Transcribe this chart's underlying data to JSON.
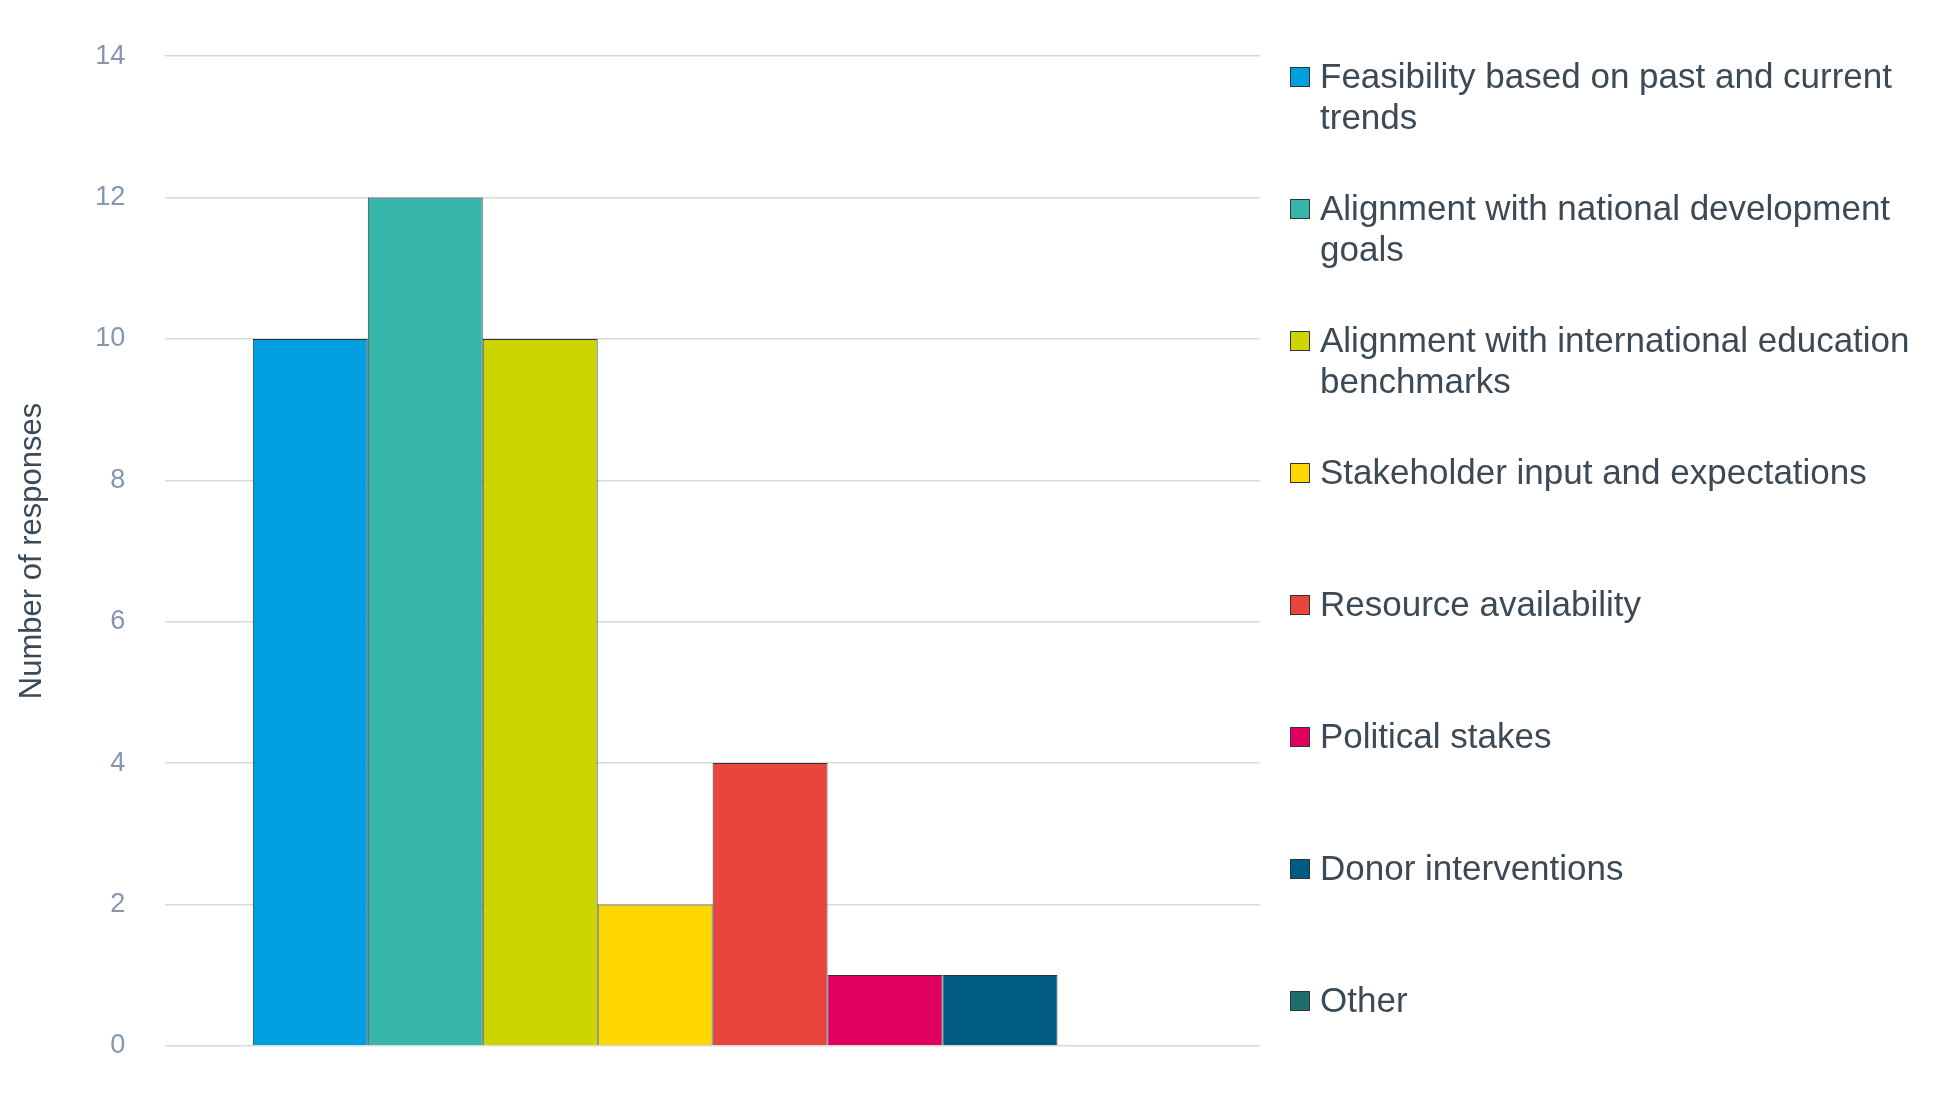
{
  "chart_data": {
    "type": "bar",
    "ylabel": "Number of responses",
    "categories": [
      null
    ],
    "series": [
      {
        "name": "Feasibility based on past and current trends",
        "color": "#009fdf",
        "values": [
          10
        ]
      },
      {
        "name": "Alignment with national development goals",
        "color": "#36b5aa",
        "values": [
          12
        ]
      },
      {
        "name": "Alignment with international education benchmarks",
        "color": "#cdd500",
        "values": [
          10
        ]
      },
      {
        "name": "Stakeholder input and expectations",
        "color": "#ffd700",
        "values": [
          2
        ]
      },
      {
        "name": "Resource availability",
        "color": "#e8453c",
        "values": [
          4
        ]
      },
      {
        "name": "Political stakes",
        "color": "#e0005f",
        "values": [
          1
        ]
      },
      {
        "name": "Donor interventions",
        "color": "#005b82",
        "values": [
          1
        ]
      },
      {
        "name": "Other",
        "color": "#1e6e6e",
        "values": [
          0
        ]
      }
    ],
    "ylim": [
      0,
      14
    ],
    "yticks": [
      0,
      2,
      4,
      6,
      8,
      10,
      12,
      14
    ],
    "grid": "y",
    "legend": "right",
    "tick_labels": "y"
  }
}
